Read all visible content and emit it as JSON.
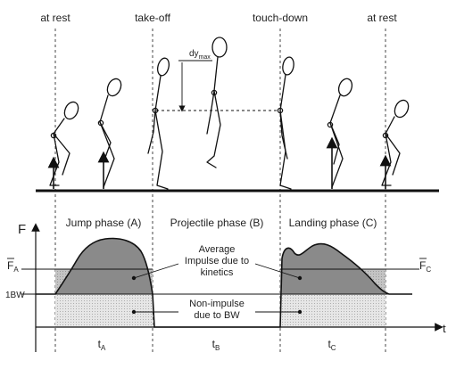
{
  "top_labels": {
    "at_rest_left": "at rest",
    "take_off": "take-off",
    "touch_down": "touch-down",
    "at_rest_right": "at rest"
  },
  "dy_label": {
    "main": "dy",
    "sub": "max"
  },
  "axes": {
    "y_label": "F",
    "x_label": "t"
  },
  "levels": {
    "fa_main": "F",
    "fa_sub": "A",
    "fc_main": "F",
    "fc_sub": "C",
    "bw": "1BW"
  },
  "phases": {
    "a": "Jump phase (A)",
    "b": "Projectile phase (B)",
    "c": "Landing phase (C)"
  },
  "annotations": {
    "impulse_line1": "Average",
    "impulse_line2": "Impulse due to",
    "impulse_line3": "kinetics",
    "nonimpulse_line1": "Non-impulse",
    "nonimpulse_line2": "due to BW"
  },
  "durations": {
    "ta_main": "t",
    "ta_sub": "A",
    "tb_main": "t",
    "tb_sub": "B",
    "tc_main": "t",
    "tc_sub": "C"
  },
  "colors": {
    "impulse_fill": "#8c8c8c",
    "average_fill": "#c8c8c8",
    "bw_fill": "#dcdcdc"
  }
}
